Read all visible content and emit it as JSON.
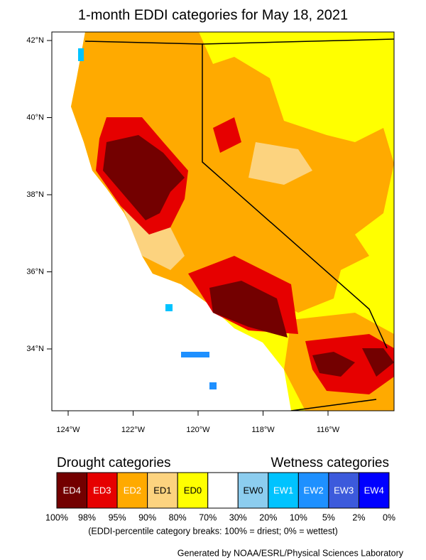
{
  "title": "1-month EDDI categories for May 18, 2021",
  "map": {
    "lat_labels": [
      "42°N",
      "40°N",
      "38°N",
      "36°N",
      "34°N"
    ],
    "lon_labels": [
      "124°W",
      "122°W",
      "120°W",
      "118°W",
      "116°W"
    ]
  },
  "legend": {
    "drought_title": "Drought categories",
    "wetness_title": "Wetness categories",
    "categories": [
      {
        "label": "ED4",
        "color": "#730000",
        "text_color": "#ffffff"
      },
      {
        "label": "ED3",
        "color": "#e60000",
        "text_color": "#ffffff"
      },
      {
        "label": "ED2",
        "color": "#ffaa00",
        "text_color": "#ffffff"
      },
      {
        "label": "ED1",
        "color": "#fcd37f",
        "text_color": "#000000"
      },
      {
        "label": "ED0",
        "color": "#ffff00",
        "text_color": "#000000"
      },
      {
        "label": null,
        "color": "#ffffff",
        "text_color": "#000000"
      },
      {
        "label": "EW0",
        "color": "#8ccdef",
        "text_color": "#000000"
      },
      {
        "label": "EW1",
        "color": "#00c3ff",
        "text_color": "#ffffff"
      },
      {
        "label": "EW2",
        "color": "#1e90ff",
        "text_color": "#ffffff"
      },
      {
        "label": "EW3",
        "color": "#3c5adc",
        "text_color": "#ffffff"
      },
      {
        "label": "EW4",
        "color": "#0000ff",
        "text_color": "#ffffff"
      }
    ],
    "breaks": [
      "100%",
      "98%",
      "95%",
      "90%",
      "80%",
      "70%",
      "30%",
      "20%",
      "10%",
      "5%",
      "2%",
      "0%"
    ],
    "note": "(EDDI-percentile category breaks: 100% = driest; 0% = wettest)"
  },
  "credit": "Generated by NOAA/ESRL/Physical Sciences Laboratory"
}
